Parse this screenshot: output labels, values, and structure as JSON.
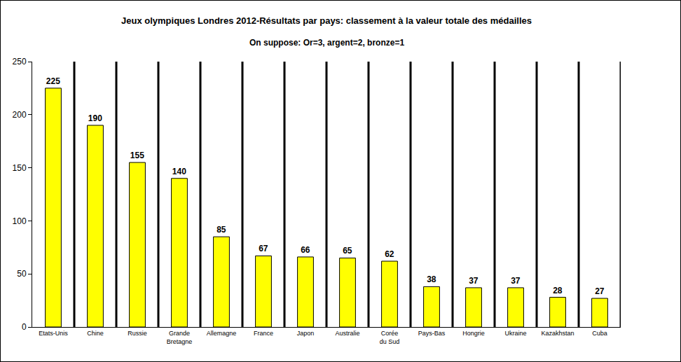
{
  "chart_data": {
    "type": "bar",
    "title": "Jeux olympiques Londres 2012-Résultats par pays: classement à la valeur totale des médailles",
    "subtitle": "On suppose: Or=3, argent=2, bronze=1",
    "categories": [
      "Etats-Unis",
      "Chine",
      "Russie",
      "Grande Bretagne",
      "Allemagne",
      "France",
      "Japon",
      "Australie",
      "Corée du Sud",
      "Pays-Bas",
      "Hongrie",
      "Ukraine",
      "Kazakhstan",
      "Cuba"
    ],
    "values": [
      225,
      190,
      155,
      140,
      85,
      67,
      66,
      65,
      62,
      38,
      37,
      37,
      28,
      27
    ],
    "color": "#ffff00",
    "ylim": [
      0,
      250
    ],
    "yticks": [
      0,
      50,
      100,
      150,
      200,
      250
    ],
    "grid": false,
    "data_labels": true
  }
}
